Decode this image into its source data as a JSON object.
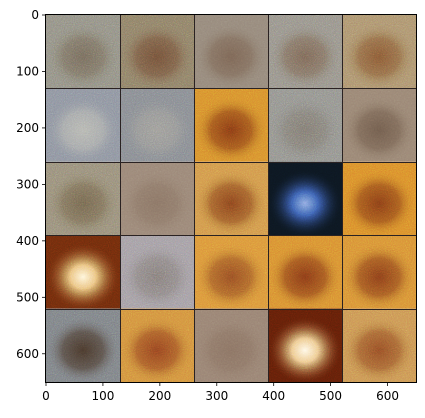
{
  "figure": {
    "type": "image-grid",
    "rows": 5,
    "cols": 5,
    "x_range": [
      0,
      650
    ],
    "y_range": [
      0,
      650
    ],
    "x_ticks": [
      0,
      100,
      200,
      300,
      400,
      500,
      600
    ],
    "y_ticks": [
      0,
      100,
      200,
      300,
      400,
      500,
      600
    ],
    "x_tick_labels": [
      "0",
      "100",
      "200",
      "300",
      "400",
      "500",
      "600"
    ],
    "y_tick_labels": [
      "0",
      "100",
      "200",
      "300",
      "400",
      "500",
      "600"
    ],
    "tiles": [
      {
        "base": "#8e8c80",
        "blob": "#6f6455",
        "glow": null,
        "noise": "colorful"
      },
      {
        "base": "#8a7c64",
        "blob": "#6c4a33",
        "glow": null,
        "noise": "colorful"
      },
      {
        "base": "#978a7c",
        "blob": "#7a6352",
        "glow": null,
        "noise": "smooth"
      },
      {
        "base": "#938f86",
        "blob": "#75604f",
        "glow": null,
        "noise": "colorful"
      },
      {
        "base": "#a98f6b",
        "blob": "#80512e",
        "glow": null,
        "noise": "colorful"
      },
      {
        "base": "#8a909c",
        "blob": "#b8b8b0",
        "glow": null,
        "noise": "cool"
      },
      {
        "base": "#84888e",
        "blob": "#9e9c96",
        "glow": null,
        "noise": "cool"
      },
      {
        "base": "#d58a2c",
        "blob": "#7a3112",
        "glow": null,
        "noise": "warm"
      },
      {
        "base": "#8f8f8a",
        "blob": "#7a746c",
        "glow": null,
        "noise": "colorful"
      },
      {
        "base": "#9b8775",
        "blob": "#6e5a4a",
        "glow": null,
        "noise": "smooth"
      },
      {
        "base": "#948a76",
        "blob": "#6d6049",
        "glow": null,
        "noise": "colorful"
      },
      {
        "base": "#9c8878",
        "blob": "#8a7464",
        "glow": null,
        "noise": "smooth"
      },
      {
        "base": "#cf9248",
        "blob": "#7d3a18",
        "glow": null,
        "noise": "warm"
      },
      {
        "base": "#0c1620",
        "blob": "#3e63b8",
        "glow": "#8aa6e0",
        "noise": "cool"
      },
      {
        "base": "#d8882a",
        "blob": "#7a3414",
        "glow": null,
        "noise": "warm"
      },
      {
        "base": "#6b2a0c",
        "blob": "#f0c880",
        "glow": "#fff5d8",
        "noise": "warm"
      },
      {
        "base": "#a09aa0",
        "blob": "#7e7672",
        "glow": null,
        "noise": "colorful"
      },
      {
        "base": "#d99038",
        "blob": "#8a4420",
        "glow": null,
        "noise": "warm"
      },
      {
        "base": "#d68a30",
        "blob": "#7a3014",
        "glow": null,
        "noise": "warm"
      },
      {
        "base": "#d68c34",
        "blob": "#7c3416",
        "glow": null,
        "noise": "warm"
      },
      {
        "base": "#7a7e82",
        "blob": "#423022",
        "glow": null,
        "noise": "cool"
      },
      {
        "base": "#d08c3c",
        "blob": "#8a3a1c",
        "glow": null,
        "noise": "warm"
      },
      {
        "base": "#9a8474",
        "blob": "#8a7262",
        "glow": null,
        "noise": "smooth"
      },
      {
        "base": "#5e1e08",
        "blob": "#f4d090",
        "glow": "#fff8e6",
        "noise": "warm"
      },
      {
        "base": "#c89050",
        "blob": "#8a4420",
        "glow": null,
        "noise": "warm"
      }
    ]
  }
}
